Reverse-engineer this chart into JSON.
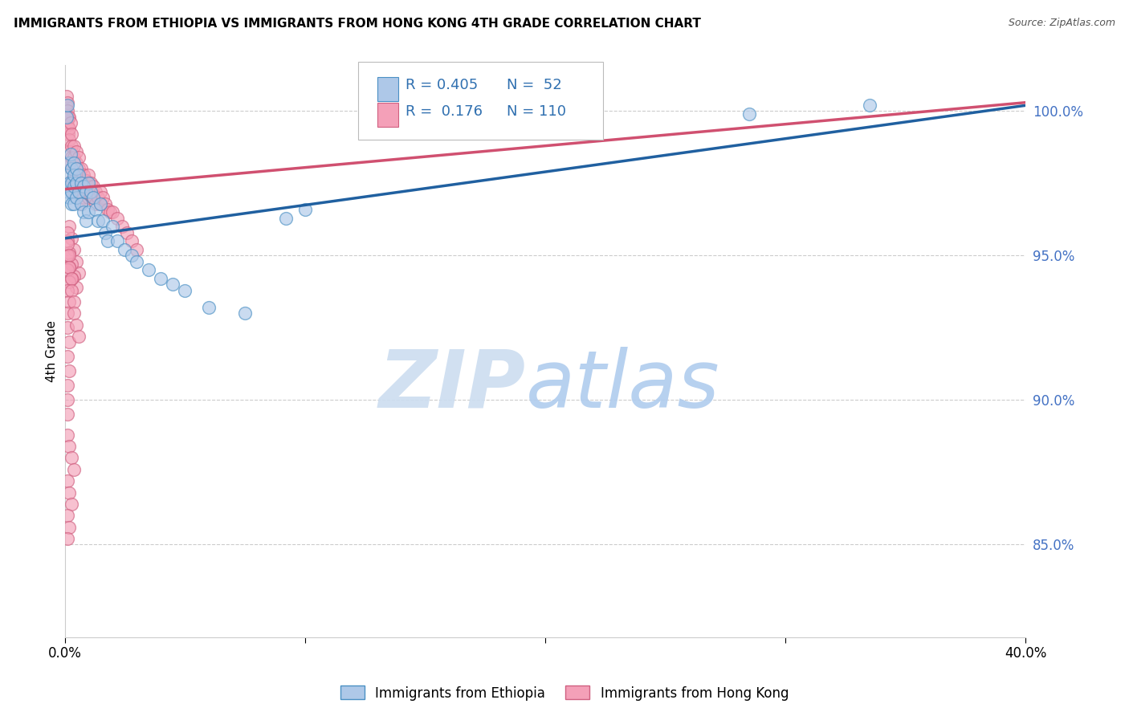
{
  "title": "IMMIGRANTS FROM ETHIOPIA VS IMMIGRANTS FROM HONG KONG 4TH GRADE CORRELATION CHART",
  "source": "Source: ZipAtlas.com",
  "ylabel": "4th Grade",
  "ylabel_right_ticks": [
    "100.0%",
    "95.0%",
    "90.0%",
    "85.0%"
  ],
  "ylabel_right_values": [
    1.0,
    0.95,
    0.9,
    0.85
  ],
  "xlim": [
    0.0,
    0.4
  ],
  "ylim": [
    0.818,
    1.016
  ],
  "watermark_zip": "ZIP",
  "watermark_atlas": "atlas",
  "legend_ethiopia": "Immigrants from Ethiopia",
  "legend_hongkong": "Immigrants from Hong Kong",
  "blue_fill": "#aec8e8",
  "blue_edge": "#4a90c4",
  "pink_fill": "#f4a0b8",
  "pink_edge": "#d06080",
  "blue_line": "#2060a0",
  "pink_line": "#d05070",
  "grid_color": "#cccccc",
  "background_color": "#ffffff",
  "blue_trendline": [
    0.0,
    0.4,
    0.956,
    1.002
  ],
  "pink_trendline": [
    0.0,
    0.4,
    0.973,
    1.003
  ],
  "legend_r_blue": "R = 0.405",
  "legend_n_blue": "N =  52",
  "legend_r_pink": "R =  0.176",
  "legend_n_pink": "N = 110",
  "eth_x": [
    0.0008,
    0.001,
    0.0012,
    0.0015,
    0.002,
    0.002,
    0.002,
    0.0025,
    0.003,
    0.003,
    0.003,
    0.003,
    0.004,
    0.004,
    0.004,
    0.004,
    0.005,
    0.005,
    0.005,
    0.006,
    0.006,
    0.007,
    0.007,
    0.008,
    0.008,
    0.009,
    0.009,
    0.01,
    0.01,
    0.011,
    0.012,
    0.013,
    0.014,
    0.015,
    0.016,
    0.017,
    0.018,
    0.02,
    0.022,
    0.025,
    0.028,
    0.03,
    0.035,
    0.04,
    0.045,
    0.05,
    0.06,
    0.075,
    0.092,
    0.1,
    0.285,
    0.335
  ],
  "eth_y": [
    0.998,
    1.002,
    0.978,
    0.972,
    0.982,
    0.975,
    0.97,
    0.985,
    0.98,
    0.975,
    0.972,
    0.968,
    0.982,
    0.978,
    0.974,
    0.968,
    0.98,
    0.975,
    0.97,
    0.978,
    0.972,
    0.975,
    0.968,
    0.974,
    0.965,
    0.972,
    0.962,
    0.975,
    0.965,
    0.972,
    0.97,
    0.966,
    0.962,
    0.968,
    0.962,
    0.958,
    0.955,
    0.96,
    0.955,
    0.952,
    0.95,
    0.948,
    0.945,
    0.942,
    0.94,
    0.938,
    0.932,
    0.93,
    0.963,
    0.966,
    0.999,
    1.002
  ],
  "hk_x": [
    0.0005,
    0.0008,
    0.001,
    0.001,
    0.001,
    0.0012,
    0.0015,
    0.0015,
    0.002,
    0.002,
    0.002,
    0.002,
    0.002,
    0.0025,
    0.003,
    0.003,
    0.003,
    0.003,
    0.003,
    0.003,
    0.004,
    0.004,
    0.004,
    0.004,
    0.004,
    0.005,
    0.005,
    0.005,
    0.005,
    0.005,
    0.006,
    0.006,
    0.006,
    0.006,
    0.007,
    0.007,
    0.007,
    0.007,
    0.008,
    0.008,
    0.008,
    0.009,
    0.009,
    0.01,
    0.01,
    0.01,
    0.011,
    0.011,
    0.012,
    0.012,
    0.013,
    0.013,
    0.014,
    0.015,
    0.015,
    0.016,
    0.017,
    0.018,
    0.019,
    0.02,
    0.022,
    0.024,
    0.026,
    0.028,
    0.03,
    0.002,
    0.003,
    0.004,
    0.005,
    0.006,
    0.001,
    0.002,
    0.003,
    0.004,
    0.005,
    0.001,
    0.002,
    0.003,
    0.001,
    0.002,
    0.001,
    0.002,
    0.001,
    0.001,
    0.002,
    0.001,
    0.002,
    0.001,
    0.001,
    0.001,
    0.001,
    0.001,
    0.002,
    0.002,
    0.003,
    0.003,
    0.004,
    0.004,
    0.005,
    0.006,
    0.001,
    0.002,
    0.003,
    0.004,
    0.001,
    0.002,
    0.003,
    0.001,
    0.002,
    0.001
  ],
  "hk_y": [
    1.002,
    1.005,
    1.003,
    0.998,
    0.995,
    1.0,
    0.998,
    0.992,
    0.998,
    0.994,
    0.99,
    0.986,
    0.982,
    0.996,
    0.992,
    0.988,
    0.984,
    0.98,
    0.976,
    0.972,
    0.988,
    0.984,
    0.98,
    0.976,
    0.972,
    0.986,
    0.982,
    0.978,
    0.974,
    0.97,
    0.984,
    0.98,
    0.976,
    0.972,
    0.98,
    0.976,
    0.972,
    0.968,
    0.978,
    0.974,
    0.97,
    0.976,
    0.972,
    0.978,
    0.974,
    0.97,
    0.975,
    0.971,
    0.974,
    0.97,
    0.972,
    0.968,
    0.97,
    0.972,
    0.968,
    0.97,
    0.968,
    0.966,
    0.965,
    0.965,
    0.963,
    0.96,
    0.958,
    0.955,
    0.952,
    0.96,
    0.956,
    0.952,
    0.948,
    0.944,
    0.955,
    0.951,
    0.947,
    0.943,
    0.939,
    0.95,
    0.946,
    0.942,
    0.945,
    0.941,
    0.938,
    0.934,
    0.93,
    0.925,
    0.92,
    0.915,
    0.91,
    0.905,
    0.9,
    0.895,
    0.958,
    0.954,
    0.95,
    0.946,
    0.942,
    0.938,
    0.934,
    0.93,
    0.926,
    0.922,
    0.888,
    0.884,
    0.88,
    0.876,
    0.872,
    0.868,
    0.864,
    0.86,
    0.856,
    0.852
  ]
}
